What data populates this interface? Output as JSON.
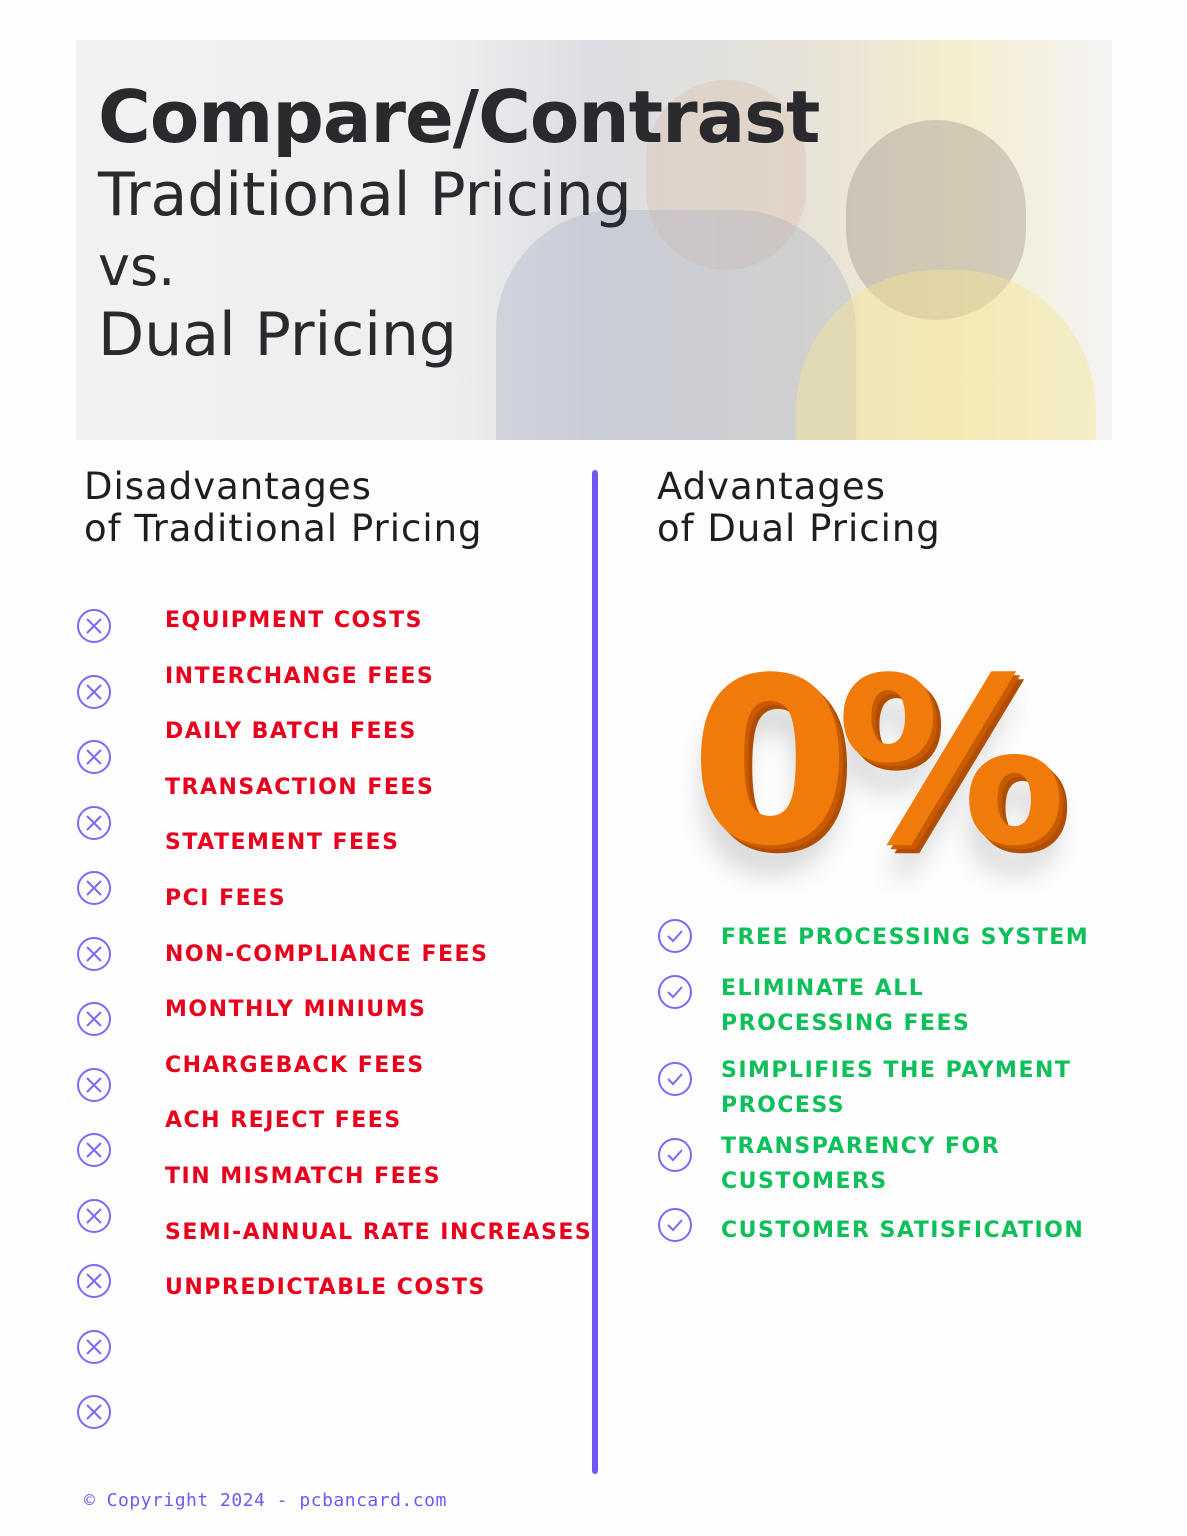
{
  "header": {
    "line1": "Compare/Contrast",
    "line2": "Traditional Pricing",
    "line3": "vs.",
    "line4": "Dual Pricing"
  },
  "left": {
    "heading1": "Disadvantages",
    "heading2": "of Traditional Pricing",
    "items": [
      "EQUIPMENT COSTS",
      "INTERCHANGE FEES",
      "DAILY BATCH FEES",
      "TRANSACTION FEES",
      "STATEMENT FEES",
      "PCI FEES",
      "NON-COMPLIANCE FEES",
      "MONTHLY MINIUMS",
      "CHARGEBACK FEES",
      "ACH REJECT FEES",
      "TIN MISMATCH FEES",
      "SEMI-ANNUAL RATE INCREASES",
      "UNPREDICTABLE COSTS"
    ]
  },
  "right": {
    "heading1": "Advantages",
    "heading2": "of Dual Pricing",
    "graphic_text": "0%",
    "items": [
      {
        "l1": "FREE PROCESSING SYSTEM",
        "l2": ""
      },
      {
        "l1": "ELIMINATE ALL",
        "l2": "PROCESSING FEES"
      },
      {
        "l1": "SIMPLIFIES THE PAYMENT",
        "l2": "PROCESS"
      },
      {
        "l1": "TRANSPARENCY FOR",
        "l2": "CUSTOMERS"
      },
      {
        "l1": "CUSTOMER SATISFICATION",
        "l2": ""
      }
    ]
  },
  "footer": "© Copyright 2024 - pcbancard.com",
  "colors": {
    "accent": "#7357f6",
    "negative": "#e8001c",
    "positive": "#0fbf5a",
    "graphic": "#f07a0a"
  }
}
